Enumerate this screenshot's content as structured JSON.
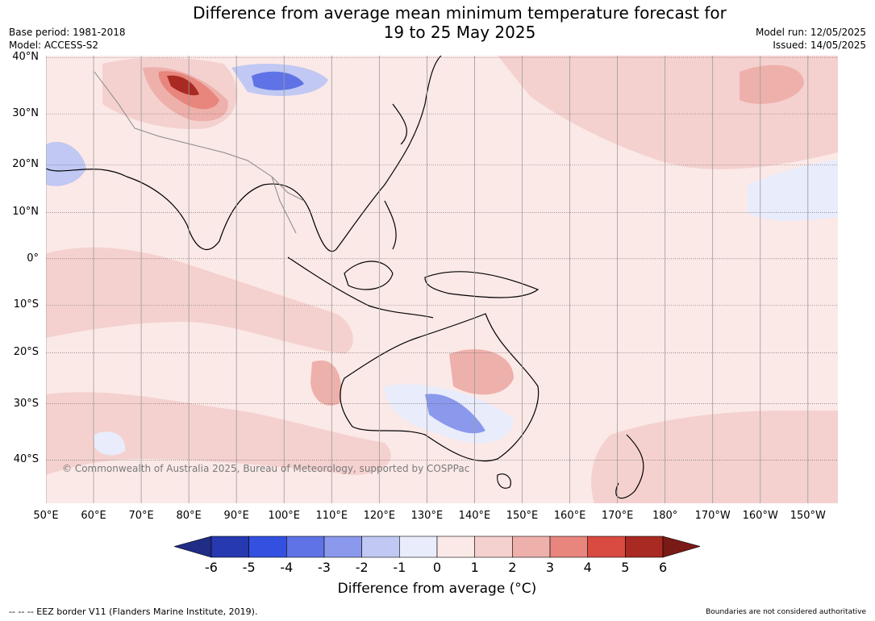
{
  "title": {
    "line1": "Difference from average mean minimum temperature forecast for",
    "line2": "19 to 25 May 2025"
  },
  "meta_left": {
    "base_period": "Base period: 1981-2018",
    "model": "Model: ACCESS-S2"
  },
  "meta_right": {
    "model_run": "Model run: 12/05/2025",
    "issued": "Issued: 14/05/2025"
  },
  "map": {
    "lat_labels": [
      "40°N",
      "30°N",
      "20°N",
      "10°N",
      "0°",
      "10°S",
      "20°S",
      "30°S",
      "40°S"
    ],
    "lon_labels": [
      "50°E",
      "60°E",
      "70°E",
      "80°E",
      "90°E",
      "100°E",
      "110°E",
      "120°E",
      "130°E",
      "140°E",
      "150°E",
      "160°E",
      "170°E",
      "180°",
      "170°W",
      "160°W",
      "150°W"
    ],
    "lat_values": [
      40,
      30,
      20,
      10,
      0,
      -10,
      -20,
      -30,
      -40
    ],
    "lon_values": [
      50,
      60,
      70,
      80,
      90,
      100,
      110,
      120,
      130,
      140,
      150,
      160,
      170,
      180,
      190,
      200,
      210
    ],
    "background_color": "#fbe9e7",
    "copyright": "© Commonwealth of Australia 2025, Bureau of Meteorology, supported by COSPPac"
  },
  "colorbar": {
    "ticks": [
      "-6",
      "-5",
      "-4",
      "-3",
      "-2",
      "-1",
      "0",
      "1",
      "2",
      "3",
      "4",
      "5",
      "6"
    ],
    "colors": [
      "#1f2d86",
      "#2639b0",
      "#3350e0",
      "#5f73e6",
      "#8a99ec",
      "#c0c8f3",
      "#e9ecfb",
      "#fbe9e7",
      "#f4d1cf",
      "#eeb0ab",
      "#e8857d",
      "#d94a40",
      "#a82a22",
      "#7a1a16"
    ],
    "label": "Difference from average (°C)"
  },
  "footer": {
    "left": "--  --  -- EEZ border V11 (Flanders Marine Institute, 2019).",
    "right": "Boundaries are not considered authoritative"
  }
}
